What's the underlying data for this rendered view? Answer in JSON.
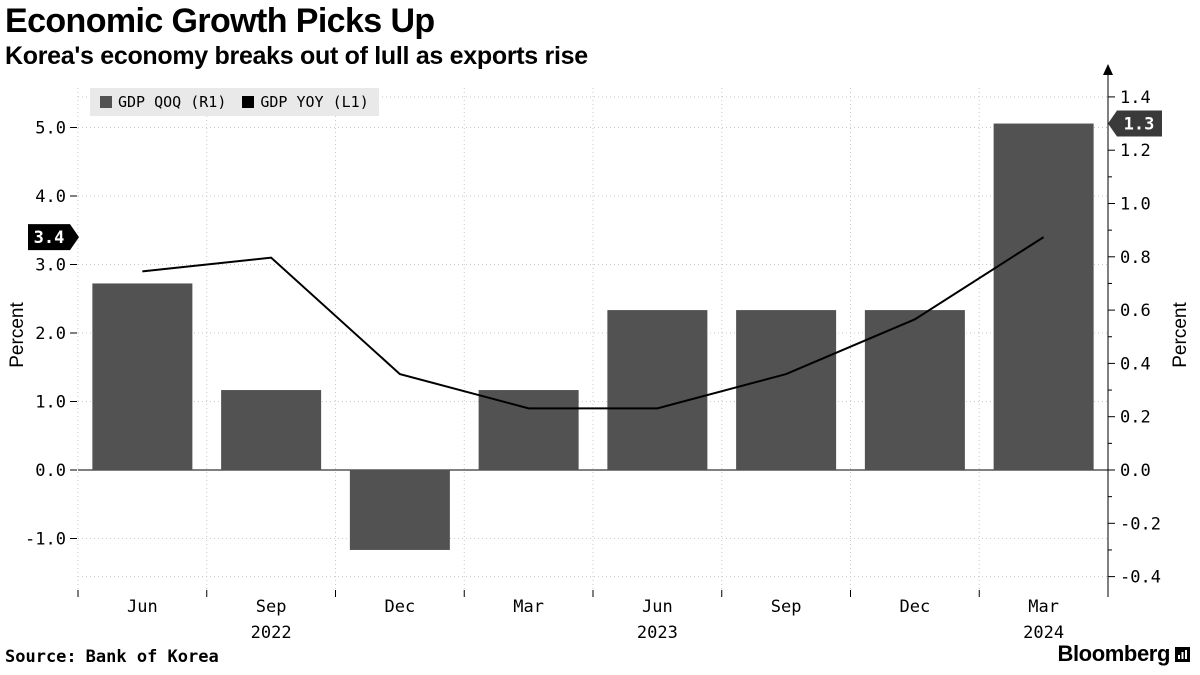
{
  "chart_data": {
    "type": "bar+line",
    "title": "Economic Growth Picks Up",
    "subtitle": "Korea's economy breaks out of lull as exports rise",
    "categories": [
      "Jun",
      "Sep",
      "Dec",
      "Mar",
      "Jun",
      "Sep",
      "Dec",
      "Mar"
    ],
    "year_labels": [
      {
        "index": 1,
        "label": "2022"
      },
      {
        "index": 4,
        "label": "2023"
      },
      {
        "index": 7,
        "label": "2024"
      }
    ],
    "series": [
      {
        "name": "GDP QOQ (R1)",
        "type": "bar",
        "axis": "right",
        "color": "#525252",
        "values": [
          0.7,
          0.3,
          -0.3,
          0.3,
          0.6,
          0.6,
          0.6,
          1.3
        ],
        "last_value_label": "1.3",
        "label_bg": "#3a3a3a"
      },
      {
        "name": "GDP YOY (L1)",
        "type": "line",
        "axis": "left",
        "color": "#000000",
        "values": [
          2.9,
          3.1,
          1.4,
          0.9,
          0.9,
          1.4,
          2.2,
          3.4
        ],
        "last_value_label": "3.4",
        "label_bg": "#000000"
      }
    ],
    "left_axis": {
      "label": "Percent",
      "ticks": [
        5.0,
        4.0,
        3.0,
        2.0,
        1.0,
        0.0,
        -1.0
      ]
    },
    "right_axis": {
      "label": "Percent",
      "ticks": [
        1.4,
        1.2,
        1.0,
        0.8,
        0.6,
        0.4,
        0.2,
        0.0,
        -0.2,
        -0.4
      ]
    },
    "grid": "dotted",
    "legend_position": "top-left",
    "gridline_color": "#c9c9c9"
  },
  "footer": {
    "source_prefix": "Source:",
    "source_text": "Bank of Korea",
    "brand": "Bloomberg"
  }
}
